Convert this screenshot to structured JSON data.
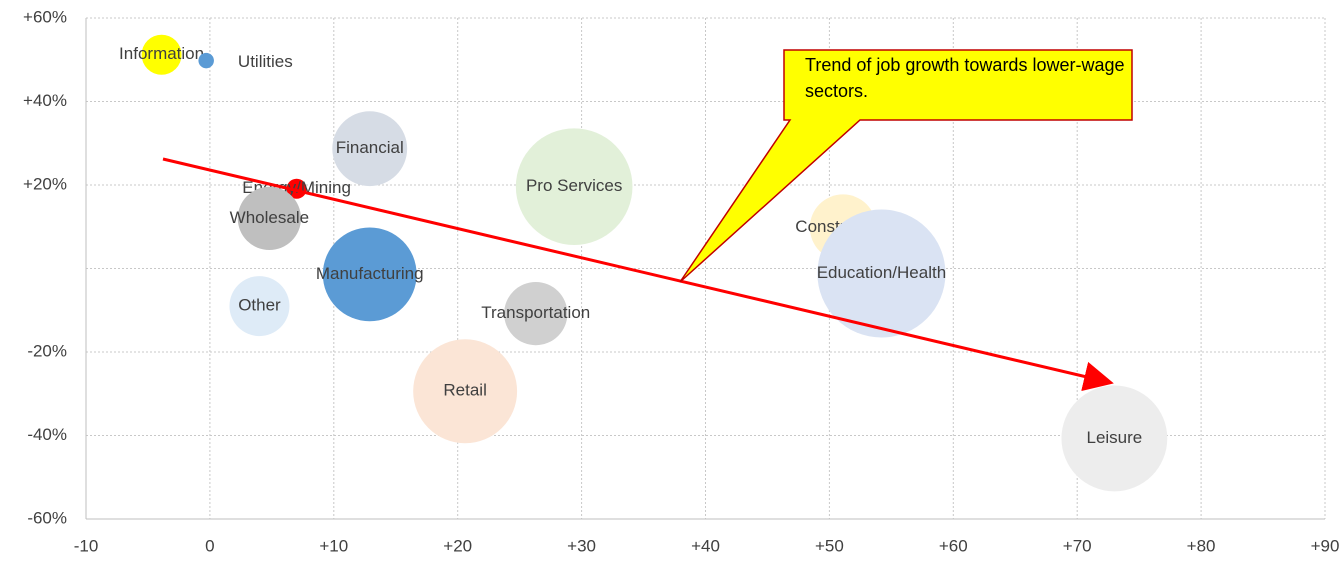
{
  "chart_data": {
    "type": "bubble",
    "annotation": "Trend of job growth towards lower-wage sectors.",
    "points": [
      {
        "name": "Information",
        "x": -3.9,
        "y": 51.2,
        "size": 4,
        "color": "#ffff00"
      },
      {
        "name": "Utilities",
        "x": -0.3,
        "y": 49.8,
        "size": 0.6,
        "color": "#5b9bd5"
      },
      {
        "name": "Financial",
        "x": 12.9,
        "y": 28.7,
        "size": 14,
        "color": "#d6dce5"
      },
      {
        "name": "Energy/Mining",
        "x": 7,
        "y": 19.1,
        "size": 1,
        "color": "#ff0000"
      },
      {
        "name": "Wholesale",
        "x": 4.8,
        "y": 12,
        "size": 10,
        "color": "#bfbfbf"
      },
      {
        "name": "Manufacturing",
        "x": 12.9,
        "y": -1.4,
        "size": 22,
        "color": "#5b9bd5"
      },
      {
        "name": "Other",
        "x": 4,
        "y": -9,
        "size": 9,
        "color": "#deebf7"
      },
      {
        "name": "Pro Services",
        "x": 29.4,
        "y": 19.6,
        "size": 34,
        "color": "#e2f0d9"
      },
      {
        "name": "Transportation",
        "x": 26.3,
        "y": -10.8,
        "size": 10,
        "color": "#d0d0d0"
      },
      {
        "name": "Retail",
        "x": 20.6,
        "y": -29.4,
        "size": 27,
        "color": "#fbe5d6"
      },
      {
        "name": "Construction",
        "x": 51.1,
        "y": 9.8,
        "size": 11,
        "color": "#fff2cc"
      },
      {
        "name": "Education/Health",
        "x": 54.2,
        "y": -1.2,
        "size": 41,
        "color": "#dae3f3"
      },
      {
        "name": "Leisure",
        "x": 73,
        "y": -40.7,
        "size": 28,
        "color": "#ededed"
      }
    ],
    "xlim": [
      -10,
      90
    ],
    "xticks": [
      -10,
      0,
      {
        "value": 10,
        "label": "+10"
      },
      {
        "value": 20,
        "label": "+20"
      },
      {
        "value": 30,
        "label": "+30"
      },
      {
        "value": 40,
        "label": "+40"
      },
      {
        "value": 50,
        "label": "+50"
      },
      {
        "value": 60,
        "label": "+60"
      },
      {
        "value": 70,
        "label": "+70"
      },
      {
        "value": 80,
        "label": "+80"
      },
      {
        "value": 90,
        "label": "+90"
      }
    ],
    "ylim": [
      -60,
      60
    ],
    "yticks": [
      {
        "value": -60,
        "label": "-60%"
      },
      {
        "value": -40,
        "label": "-40%"
      },
      {
        "value": -20,
        "label": "-20%"
      },
      {
        "value": 0,
        "label": null
      },
      {
        "value": 20,
        "label": "+20%"
      },
      {
        "value": 40,
        "label": "+40%"
      },
      {
        "value": 60,
        "label": "+60%"
      }
    ],
    "grid": true
  }
}
